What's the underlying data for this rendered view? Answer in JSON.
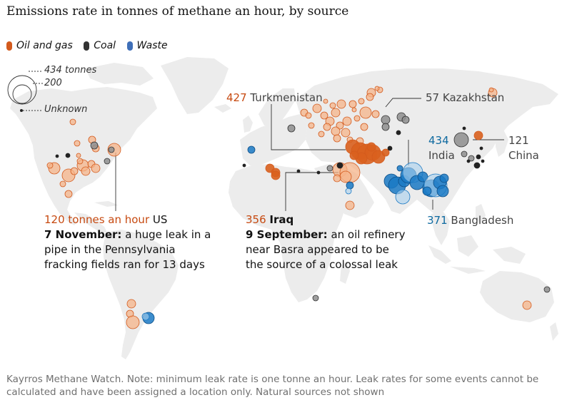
{
  "title": "Emissions rate in tonnes of methane an hour, by source",
  "legend": {
    "items": [
      {
        "label": "Oil and gas",
        "color": "#d35a1d"
      },
      {
        "label": "Coal",
        "color": "#333333"
      },
      {
        "label": "Waste",
        "color": "#3f6fb8"
      }
    ],
    "size_key": {
      "large": "434 tonnes",
      "small": "200",
      "unknown": "Unknown"
    }
  },
  "colors": {
    "oil_fill": "#f6b48a",
    "oil_stroke": "#d35a1d",
    "oil_dark": "#d9601e",
    "waste_fill": "#1a79c4",
    "waste_light": "#a9d0ee",
    "coal_fill": "#8e8e8e",
    "land": "#ececec",
    "ocean": "#ffffff"
  },
  "annotations": {
    "turkmenistan": {
      "value": "427",
      "place": "Turkmenistan"
    },
    "kazakhstan": {
      "value": "57",
      "place": "Kazakhstan"
    },
    "india": {
      "value": "434",
      "place": "India"
    },
    "china": {
      "value": "121",
      "place": "China"
    },
    "bangladesh": {
      "value": "371",
      "place": "Bangladesh"
    },
    "us": {
      "value": "120 tonnes an hour",
      "place": "US",
      "date": "7 November:",
      "line1": "a huge leak in a",
      "line2": "pipe in the Pennsylvania",
      "line3": "fracking fields ran for 13 days"
    },
    "iraq": {
      "value": "356",
      "place": "Iraq",
      "date": "9 September:",
      "line1": "an oil refinery",
      "line2": "near Basra appeared to be",
      "line3": "the source of a colossal leak"
    }
  },
  "footnote": {
    "line1": "Kayrros Methane Watch. Note: minimum leak rate is one tonne an hour. Leak rates for some events cannot be",
    "line2": "calculated and have been assigned a location only. Natural sources not shown"
  }
}
